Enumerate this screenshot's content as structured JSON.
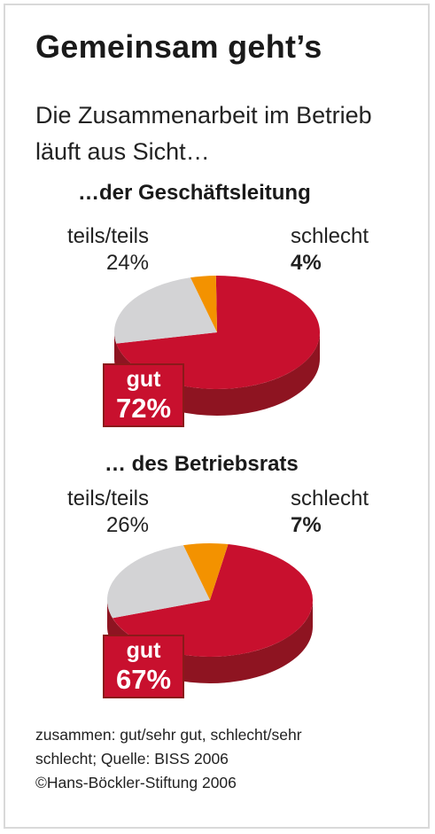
{
  "title": "Gemeinsam geht’s",
  "subtitle": "Die Zusammenarbeit im Betrieb läuft aus Sicht…",
  "footer": {
    "line1": "zusammen: gut/sehr gut, schlecht/sehr",
    "line2": "schlecht; Quelle: BISS 2006",
    "line3": "©Hans-Böckler-Stiftung 2006"
  },
  "colors": {
    "gut": "#c8102e",
    "teils": "#d3d3d5",
    "schlecht": "#f39200"
  },
  "chart_data": [
    {
      "type": "pie",
      "title": "…der Geschäftsleitung",
      "categories": [
        "gut",
        "teils/teils",
        "schlecht"
      ],
      "values": [
        72,
        24,
        4
      ],
      "labels": {
        "gut": "gut",
        "teils": "teils/teils",
        "schlecht": "schlecht"
      },
      "display_values": {
        "gut": "72%",
        "teils": "24%",
        "schlecht": "4%"
      }
    },
    {
      "type": "pie",
      "title": "… des Betriebsrats",
      "categories": [
        "gut",
        "teils/teils",
        "schlecht"
      ],
      "values": [
        67,
        26,
        7
      ],
      "labels": {
        "gut": "gut",
        "teils": "teils/teils",
        "schlecht": "schlecht"
      },
      "display_values": {
        "gut": "67%",
        "teils": "26%",
        "schlecht": "7%"
      }
    }
  ]
}
